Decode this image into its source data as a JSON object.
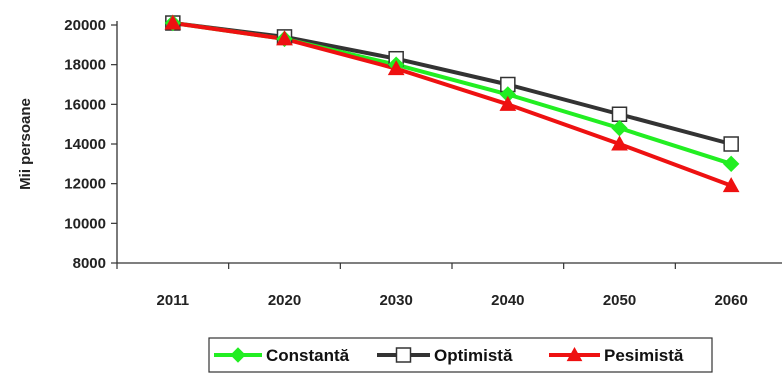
{
  "chart_data": {
    "type": "line",
    "title": "",
    "xlabel": "",
    "ylabel": "Mii persoane",
    "categories": [
      "2011",
      "2020",
      "2030",
      "2040",
      "2050",
      "2060"
    ],
    "ylim": [
      8000,
      20000
    ],
    "yticks": [
      8000,
      10000,
      12000,
      14000,
      16000,
      18000,
      20000
    ],
    "grid": false,
    "legend_position": "bottom",
    "series": [
      {
        "name": "Constantă",
        "color": "#22ee22",
        "marker": "diamond",
        "values": [
          20100,
          19300,
          18000,
          16500,
          14800,
          13000
        ]
      },
      {
        "name": "Optimistă",
        "color": "#333333",
        "marker": "open-square",
        "values": [
          20100,
          19400,
          18300,
          17000,
          15500,
          14000
        ]
      },
      {
        "name": "Pesimistă",
        "color": "#ee1111",
        "marker": "triangle",
        "values": [
          20100,
          19300,
          17800,
          16000,
          14000,
          11900
        ]
      }
    ]
  }
}
